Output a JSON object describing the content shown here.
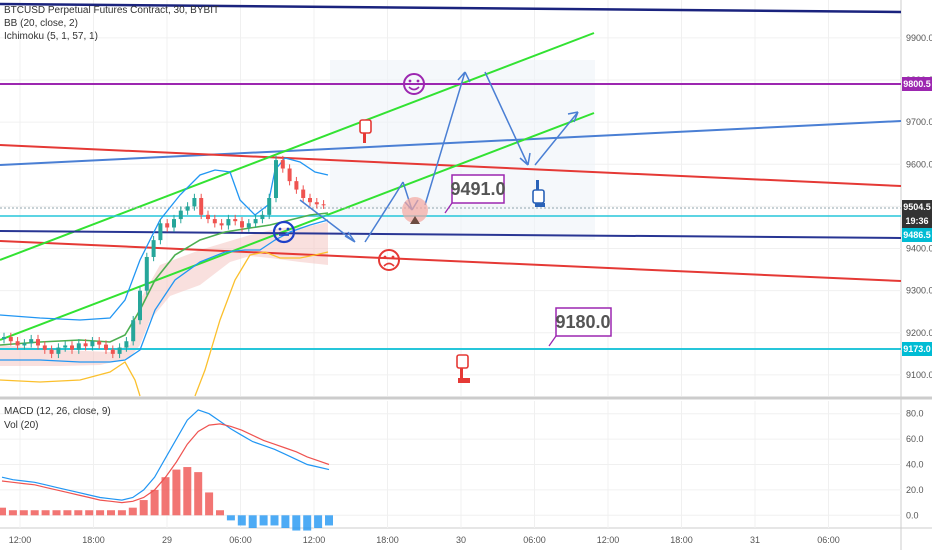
{
  "header": {
    "symbol_line": "BTCUSD Perpetual Futures Contract, 30, BYBIT",
    "bb_line": "BB (20, close, 2)",
    "ichimoku_line": "Ichimoku (5, 1, 57, 1)"
  },
  "lower_pane": {
    "macd_line": "MACD (12, 26, close, 9)",
    "vol_line": "Vol (20)"
  },
  "annotations": {
    "callout_1": "9491.0",
    "callout_2": "9180.0"
  },
  "price_tags": [
    {
      "label": "9800.5",
      "color": "#9c27b0"
    },
    {
      "label": "9504.5",
      "color": "#333333"
    },
    {
      "label": "19:36",
      "color": "#333333"
    },
    {
      "label": "9486.5",
      "color": "#00bcd4"
    },
    {
      "label": "9173.0",
      "color": "#00bcd4"
    }
  ],
  "chart_data": [
    {
      "type": "line",
      "title": "",
      "xlabel": "",
      "ylabel": "",
      "ylim": [
        9050,
        9990
      ],
      "x_ticks": [
        "12:00",
        "18:00",
        "29",
        "06:00",
        "12:00",
        "18:00",
        "30",
        "06:00",
        "12:00",
        "18:00",
        "31",
        "06:00"
      ],
      "y_ticks": [
        9100,
        9200,
        9300,
        9400,
        9500,
        9600,
        9700,
        9800,
        9900
      ],
      "close_series": [
        9190,
        9180,
        9170,
        9175,
        9185,
        9170,
        9160,
        9150,
        9165,
        9170,
        9160,
        9175,
        9168,
        9180,
        9172,
        9160,
        9150,
        9165,
        9180,
        9230,
        9300,
        9380,
        9420,
        9460,
        9450,
        9470,
        9490,
        9500,
        9520,
        9480,
        9470,
        9460,
        9455,
        9470,
        9465,
        9450,
        9460,
        9470,
        9480,
        9520,
        9610,
        9590,
        9560,
        9540,
        9520,
        9510,
        9505,
        9504
      ],
      "horizontal_levels": [
        9800.5,
        9504.5,
        9486.5,
        9173.0
      ],
      "colors": {
        "up": "#26a69a",
        "down": "#ef5350"
      }
    },
    {
      "type": "bar",
      "title": "",
      "xlabel": "",
      "ylabel": "",
      "ylim": [
        -10,
        90
      ],
      "y_ticks": [
        0.0,
        20.0,
        40.0,
        60.0,
        80.0
      ],
      "series": [
        {
          "values": [
            30,
            28,
            27,
            26,
            24,
            22,
            20,
            18,
            16,
            14,
            13,
            12,
            14,
            20,
            30,
            45,
            60,
            75,
            83,
            80,
            74,
            68,
            63,
            58,
            55,
            52,
            48,
            44,
            40,
            38,
            36
          ]
        },
        {
          "values": [
            27,
            26,
            25,
            24,
            22,
            20,
            18,
            16,
            14,
            12,
            11,
            10,
            11,
            14,
            20,
            30,
            42,
            56,
            66,
            71,
            72,
            70,
            67,
            63,
            59,
            56,
            53,
            50,
            46,
            43,
            40
          ]
        }
      ]
    }
  ]
}
